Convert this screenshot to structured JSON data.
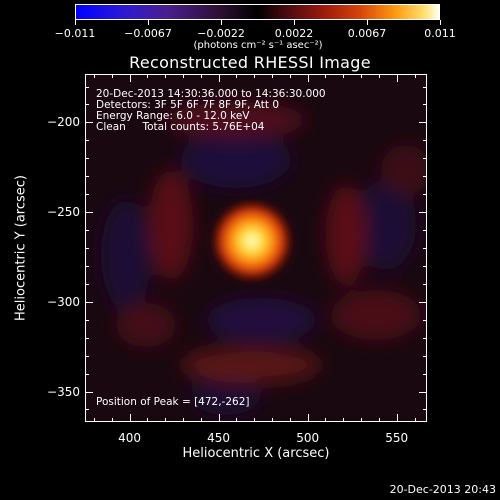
{
  "colorbar": {
    "tick_labels": [
      "-0.011",
      "-0.0067",
      "-0.0022",
      "0.0022",
      "0.0067",
      "0.011"
    ],
    "units_label": "(photons cm⁻² s⁻¹ asec⁻²)"
  },
  "chart_data": {
    "type": "heatmap",
    "title": "Reconstructed RHESSI Image",
    "xlabel": "Heliocentric X (arcsec)",
    "ylabel": "Heliocentric Y (arcsec)",
    "xlim": [
      375,
      567
    ],
    "ylim": [
      -367,
      -173
    ],
    "x_ticks": [
      "400",
      "450",
      "500",
      "550"
    ],
    "y_ticks": [
      "-200",
      "-250",
      "-300",
      "-350"
    ],
    "peak_position": [
      472,
      -262
    ],
    "colormap": [
      "#0000ff",
      "#000000",
      "#ff0000",
      "#ffffff"
    ]
  },
  "info": {
    "time": "20-Dec-2013 14:30:36.000 to 14:36:30.000",
    "detectors": "Detectors: 3F 5F 6F 7F 8F 9F, Att 0",
    "energy": "Energy Range: 6.0 - 12.0 keV",
    "clean": "Clean     Total counts: 5.76E+04",
    "peak": "Position of Peak = [472,-262]"
  },
  "timestamp": "20-Dec-2013 20:43"
}
